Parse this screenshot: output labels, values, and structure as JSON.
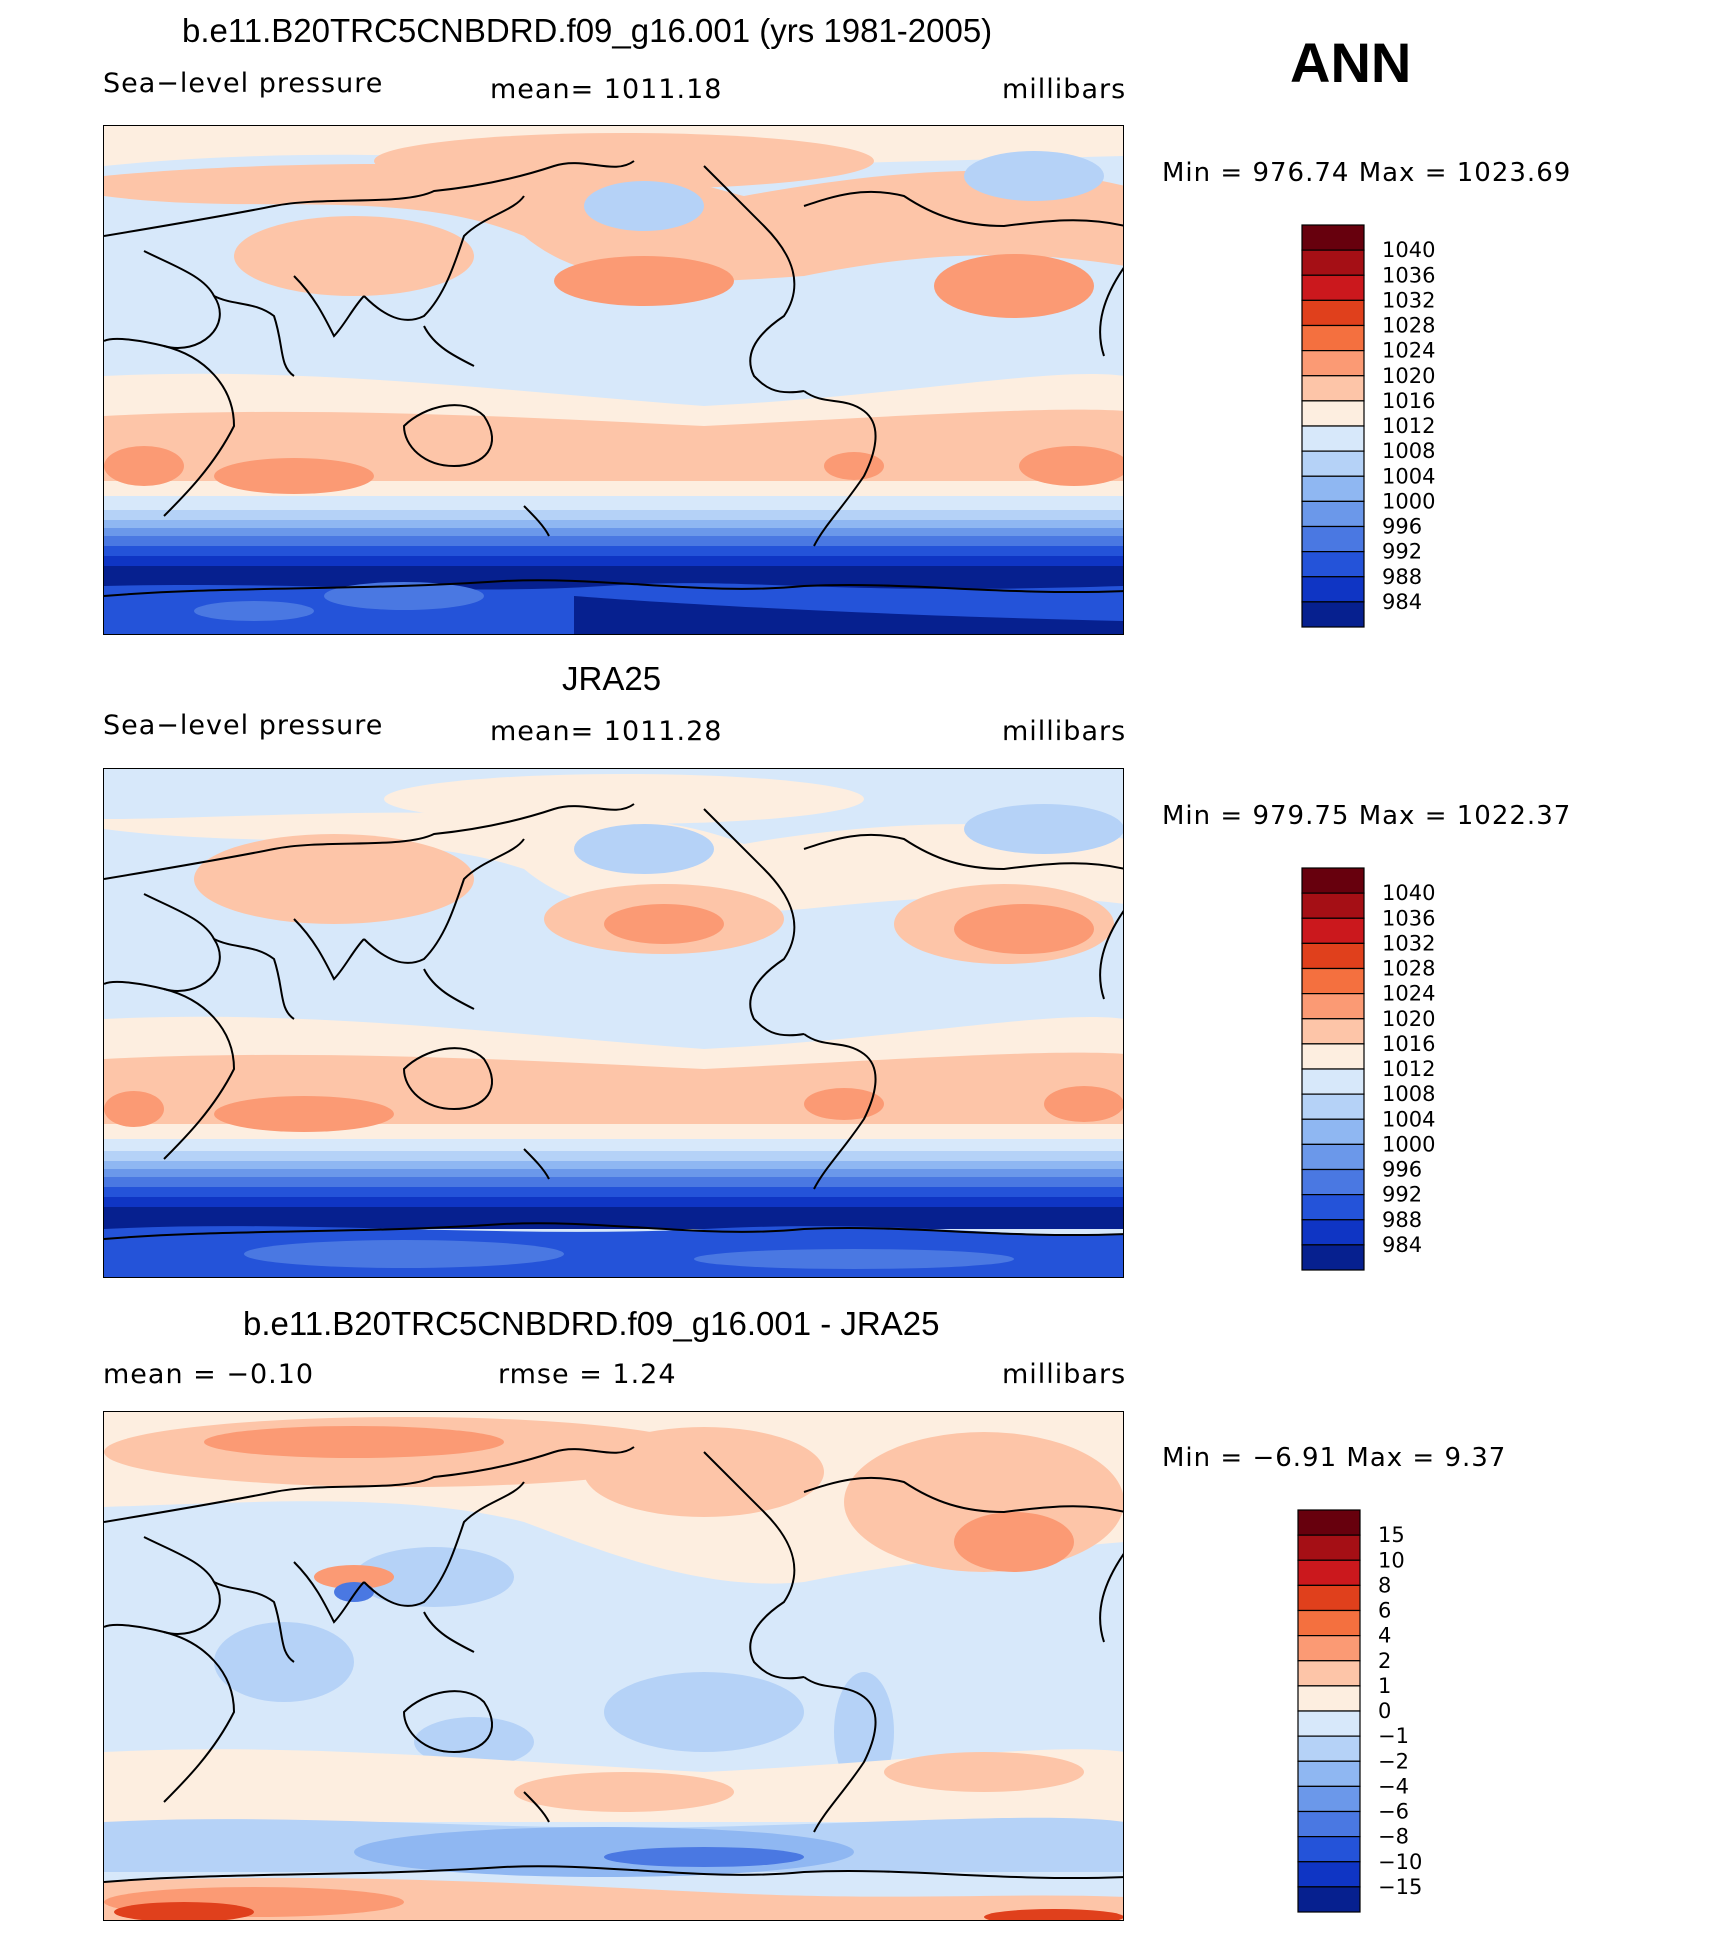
{
  "figure": {
    "season": "ANN"
  },
  "panels": [
    {
      "title": "b.e11.B20TRC5CNBDRD.f09_g16.001 (yrs 1981-2005)",
      "left_label": "Sea−level pressure",
      "center_label": "mean=  1011.18",
      "right_label": "millibars",
      "minmax": "Min  =  976.74  Max  =  1023.69",
      "colorbar_levels": [
        "1040",
        "1036",
        "1032",
        "1028",
        "1024",
        "1020",
        "1016",
        "1012",
        "1008",
        "1004",
        "1000",
        "996",
        "992",
        "988",
        "984"
      ]
    },
    {
      "title": "JRA25",
      "left_label": "Sea−level pressure",
      "center_label": "mean=  1011.28",
      "right_label": "millibars",
      "minmax": "Min  =  979.75  Max  =  1022.37",
      "colorbar_levels": [
        "1040",
        "1036",
        "1032",
        "1028",
        "1024",
        "1020",
        "1016",
        "1012",
        "1008",
        "1004",
        "1000",
        "996",
        "992",
        "988",
        "984"
      ]
    },
    {
      "title": "b.e11.B20TRC5CNBDRD.f09_g16.001 - JRA25",
      "left_label": "mean  =    −0.10",
      "center_label": "rmse  =     1.24",
      "right_label": "millibars",
      "minmax": "Min  =    −6.91  Max  =     9.37",
      "colorbar_levels": [
        "15",
        "10",
        "8",
        "6",
        "4",
        "2",
        "1",
        "0",
        "−1",
        "−2",
        "−4",
        "−6",
        "−8",
        "−10",
        "−15"
      ]
    }
  ],
  "colors": {
    "abs_palette": [
      "#67000d",
      "#a50f15",
      "#cb181d",
      "#e0401c",
      "#f4703f",
      "#fb9a74",
      "#fdc5a8",
      "#fdeee0",
      "#d7e8fa",
      "#b5d2f7",
      "#8fb7f2",
      "#6b98ea",
      "#4a78e2",
      "#2453d9",
      "#0f35c4",
      "#06208f"
    ],
    "ocean_light": "#d7e8fa",
    "land_coast": "#000000"
  }
}
